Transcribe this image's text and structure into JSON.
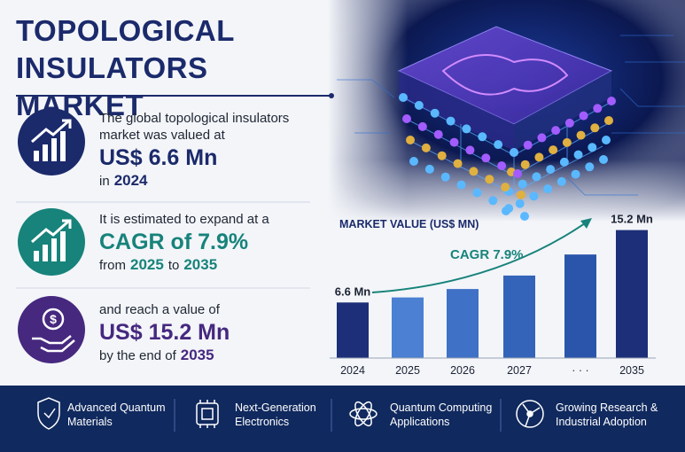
{
  "header": {
    "title": "TOPOLOGICAL INSULATORS MARKET"
  },
  "stats": [
    {
      "intro": "The global topological insulators market was valued at",
      "highlight": "US$ 6.6 Mn",
      "tail": [
        "in",
        "2024"
      ],
      "color": "#1b2a6b"
    },
    {
      "intro": "It is estimated to expand at a",
      "highlight": "CAGR of 7.9%",
      "tail": [
        "from",
        "2025",
        "to",
        "2035"
      ],
      "color": "#17837b"
    },
    {
      "intro": "and reach a value of",
      "highlight": "US$ 15.2 Mn",
      "tail": [
        "by the end of",
        "2035"
      ],
      "color": "#46287f"
    }
  ],
  "chart_data": {
    "type": "bar",
    "title": "MARKET VALUE (US$ MN)",
    "annotation": "CAGR 7.9%",
    "categories": [
      "2024",
      "2025",
      "2026",
      "2027",
      "· · ·",
      "2035"
    ],
    "values": [
      6.6,
      7.2,
      8.2,
      9.8,
      12.3,
      15.2
    ],
    "value_labels": [
      "6.6 Mn",
      null,
      null,
      null,
      null,
      "15.2 Mn"
    ],
    "colors": [
      "#1c2f78",
      "#4b80d2",
      "#3f72c6",
      "#3464b9",
      "#2b55ab",
      "#1c2f78"
    ]
  },
  "footer": {
    "items": [
      "Advanced Quantum Materials",
      "Next-Generation Electronics",
      "Quantum Computing Applications",
      "Growing Research & Industrial Adoption"
    ]
  }
}
